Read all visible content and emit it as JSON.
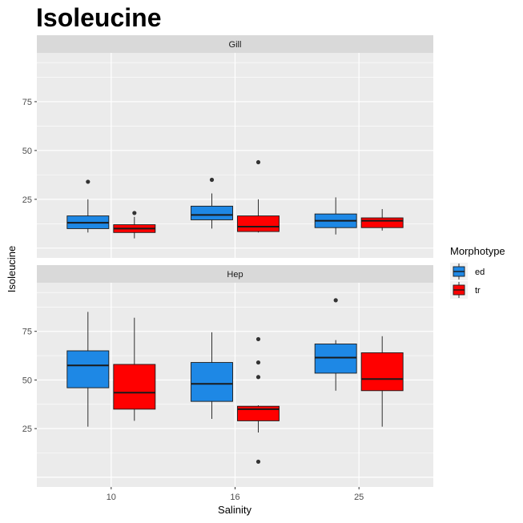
{
  "chart_data": {
    "type": "box",
    "title": "Isoleucine",
    "xlabel": "Salinity",
    "ylabel": "Isoleucine",
    "categories": [
      "10",
      "16",
      "25"
    ],
    "ylim": [
      -5,
      100
    ],
    "yticks": [
      25,
      50,
      75
    ],
    "legend": {
      "title": "Morphotype",
      "position": "right",
      "entries": [
        {
          "name": "ed",
          "color": "#1E88E5"
        },
        {
          "name": "tr",
          "color": "#FF0000"
        }
      ]
    },
    "panels": [
      {
        "strip": "Gill",
        "boxes": [
          {
            "category": "10",
            "group": "ed",
            "min": 8,
            "q1": 10,
            "median": 13,
            "q3": 16.5,
            "max": 25,
            "outliers": [
              34
            ]
          },
          {
            "category": "10",
            "group": "tr",
            "min": 5,
            "q1": 8,
            "median": 10,
            "q3": 12,
            "max": 16,
            "outliers": [
              18
            ]
          },
          {
            "category": "16",
            "group": "ed",
            "min": 10,
            "q1": 14.5,
            "median": 17,
            "q3": 21.5,
            "max": 28,
            "outliers": [
              35
            ]
          },
          {
            "category": "16",
            "group": "tr",
            "min": 8,
            "q1": 8.5,
            "median": 11,
            "q3": 16.5,
            "max": 25,
            "outliers": [
              44
            ]
          },
          {
            "category": "25",
            "group": "ed",
            "min": 7,
            "q1": 10.5,
            "median": 14,
            "q3": 17.5,
            "max": 26,
            "outliers": []
          },
          {
            "category": "25",
            "group": "tr",
            "min": 9,
            "q1": 10.5,
            "median": 14,
            "q3": 15.5,
            "max": 20,
            "outliers": []
          }
        ]
      },
      {
        "strip": "Hep",
        "boxes": [
          {
            "category": "10",
            "group": "ed",
            "min": 26,
            "q1": 46,
            "median": 57.5,
            "q3": 65,
            "max": 85,
            "outliers": []
          },
          {
            "category": "10",
            "group": "tr",
            "min": 29,
            "q1": 35,
            "median": 43.5,
            "q3": 58,
            "max": 82,
            "outliers": []
          },
          {
            "category": "16",
            "group": "ed",
            "min": 30,
            "q1": 39,
            "median": 48,
            "q3": 59,
            "max": 74.5,
            "outliers": []
          },
          {
            "category": "16",
            "group": "tr",
            "min": 23,
            "q1": 29,
            "median": 35,
            "q3": 36.5,
            "max": 37,
            "outliers": [
              8,
              51.5,
              59,
              71
            ]
          },
          {
            "category": "25",
            "group": "ed",
            "min": 44.5,
            "q1": 53.5,
            "median": 61.5,
            "q3": 68.5,
            "max": 70.5,
            "outliers": [
              91
            ]
          },
          {
            "category": "25",
            "group": "tr",
            "min": 26,
            "q1": 44.5,
            "median": 50.5,
            "q3": 64,
            "max": 72.5,
            "outliers": []
          }
        ]
      }
    ]
  }
}
